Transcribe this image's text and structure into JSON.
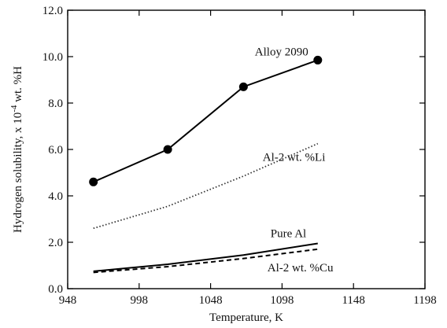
{
  "chart_data": {
    "type": "line",
    "title": "",
    "xlabel": "Temperature, K",
    "ylabel": "Hydrogen solubility, x 10",
    "ylabel_exponent": "-4",
    "ylabel_suffix": " wt. %H",
    "xlim": [
      948,
      1198
    ],
    "ylim": [
      0,
      12
    ],
    "x_ticks": [
      948,
      998,
      1048,
      1098,
      1148,
      1198
    ],
    "x_tick_labels": [
      "948",
      "998",
      "1048",
      "1098",
      "1148",
      "1198"
    ],
    "y_ticks": [
      0,
      2,
      4,
      6,
      8,
      10,
      12
    ],
    "y_tick_labels": [
      "0.0",
      "2.0",
      "4.0",
      "6.0",
      "8.0",
      "10.0",
      "12.0"
    ],
    "grid": false,
    "legend": "none",
    "series": [
      {
        "name": "Alloy 2090",
        "style": "solid-markers",
        "color": "#000000",
        "x": [
          966,
          1018,
          1071,
          1123
        ],
        "y": [
          4.6,
          6.0,
          8.7,
          9.85
        ]
      },
      {
        "name": "Al-2 wt. %Li",
        "style": "dotted",
        "color": "#333333",
        "x": [
          966,
          1018,
          1071,
          1123
        ],
        "y": [
          2.6,
          3.55,
          4.85,
          6.25
        ]
      },
      {
        "name": "Pure Al",
        "style": "solid",
        "color": "#000000",
        "x": [
          966,
          1018,
          1071,
          1123
        ],
        "y": [
          0.75,
          1.05,
          1.45,
          1.95
        ]
      },
      {
        "name": "Al-2 wt. %Cu",
        "style": "dashed",
        "color": "#000000",
        "x": [
          966,
          1018,
          1071,
          1123
        ],
        "y": [
          0.7,
          0.95,
          1.3,
          1.7
        ]
      }
    ]
  }
}
